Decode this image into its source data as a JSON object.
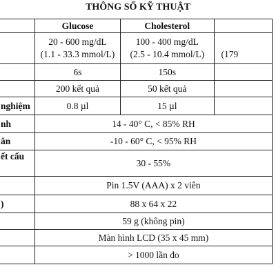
{
  "title": "THÔNG SỐ KỸ THUẬT",
  "header": [
    "Glucose",
    "Cholesterol"
  ],
  "rows": [
    {
      "glucose": [
        "20 - 600 mg/dL",
        "(1.1 - 33.3 mmol/L)"
      ],
      "cholesterol": [
        "100 - 400 mg/dL",
        "(2.5 - 10.4 mmol/L)"
      ],
      "extra": "(179"
    },
    {
      "glucose": "6s",
      "cholesterol": "150s"
    },
    {
      "glucose": "200 kết quả",
      "cholesterol": "50 kết quả"
    },
    {
      "label": "nghiệm",
      "glucose": "0.8 µl",
      "cholesterol": "15 µl"
    },
    {
      "label": "nh",
      "value": "14 - 40° C, < 85% RH"
    },
    {
      "label": "ân",
      "value": "-10 - 60° C, < 95% RH"
    },
    {
      "label": "ết cấu",
      "value": "30 - 55%"
    },
    {
      "value": "Pin 1.5V (AAA) x 2 viên"
    },
    {
      "label": ")",
      "value": "88 x 64 x 22"
    },
    {
      "value": "59 g (không pin)"
    },
    {
      "value": "Màn hình LCD (35 x 45 mm)"
    },
    {
      "value": "> 1000 lần đo"
    }
  ]
}
